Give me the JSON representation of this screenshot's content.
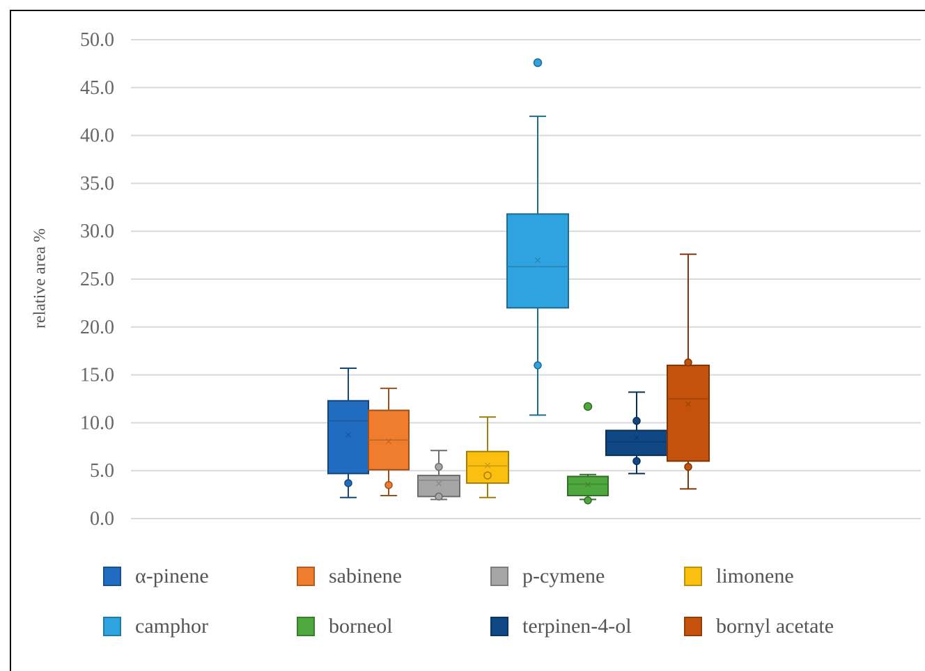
{
  "chart_data": {
    "type": "box",
    "title": "",
    "xlabel": "",
    "ylabel": "relative area %",
    "ylim": [
      0,
      50
    ],
    "yticks": [
      "50.0",
      "45.0",
      "40.0",
      "35.0",
      "30.0",
      "25.0",
      "20.0",
      "15.0",
      "10.0",
      "5.0",
      "0.0"
    ],
    "grid": true,
    "legend_position": "bottom",
    "series": [
      {
        "name": "α-pinene",
        "color": "#1f6cc1",
        "min": 2.2,
        "q1": 4.7,
        "median": 10.2,
        "q3": 12.3,
        "max": 15.7,
        "mean": 8.8,
        "outliers": [],
        "points": [
          3.7
        ]
      },
      {
        "name": "sabinene",
        "color": "#ef7d2d",
        "min": 2.4,
        "q1": 5.1,
        "median": 8.2,
        "q3": 11.3,
        "max": 13.6,
        "mean": 8.1,
        "outliers": [],
        "points": [
          3.5
        ]
      },
      {
        "name": "p-cymene",
        "color": "#a6a6a6",
        "min": 2.0,
        "q1": 2.3,
        "median": 4.0,
        "q3": 4.5,
        "max": 7.1,
        "mean": 3.7,
        "outliers": [],
        "points": [
          5.4,
          2.3
        ]
      },
      {
        "name": "limonene",
        "color": "#fbbf0f",
        "min": 2.2,
        "q1": 3.7,
        "median": 5.5,
        "q3": 7.0,
        "max": 10.6,
        "mean": 5.6,
        "outliers": [],
        "points": [
          4.5
        ]
      },
      {
        "name": "camphor",
        "color": "#2ea3df",
        "min": 10.8,
        "q1": 22.0,
        "median": 26.3,
        "q3": 31.8,
        "max": 42.0,
        "mean": 27.0,
        "outliers": [
          47.6
        ],
        "points": [
          16.0
        ]
      },
      {
        "name": "borneol",
        "color": "#4ea83d",
        "min": 2.0,
        "q1": 2.4,
        "median": 3.6,
        "q3": 4.4,
        "max": 4.6,
        "mean": 3.6,
        "outliers": [
          11.7
        ],
        "points": [
          1.9
        ]
      },
      {
        "name": "terpinen-4-ol",
        "color": "#0f4885",
        "min": 4.7,
        "q1": 6.6,
        "median": 8.0,
        "q3": 9.2,
        "max": 13.2,
        "mean": 8.5,
        "outliers": [],
        "points": [
          10.2,
          6.0
        ]
      },
      {
        "name": "bornyl acetate",
        "color": "#c4520c",
        "min": 3.1,
        "q1": 6.0,
        "median": 12.5,
        "q3": 16.0,
        "max": 27.6,
        "mean": 12.0,
        "outliers": [],
        "points": [
          5.4,
          16.3
        ]
      }
    ]
  }
}
